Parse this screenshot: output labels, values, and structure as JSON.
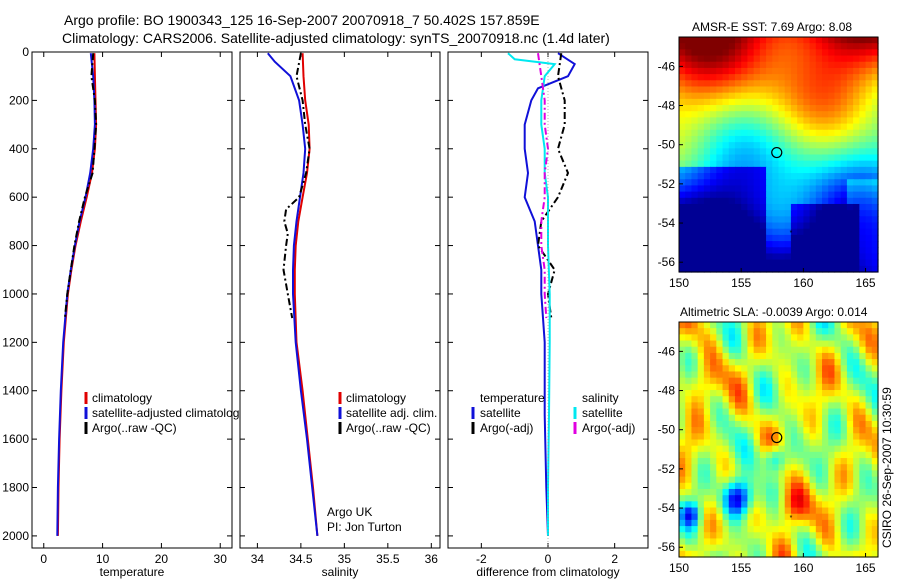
{
  "title_line1": "Argo profile: BO 1900343_125 16-Sep-2007 20070918_7 50.402S 157.859E",
  "title_line2": "Climatology: CARS2006. Satellite-adjusted climatology: synTS_20070918.nc (1.4d later)",
  "credit": "CSIRO 26-Sep-2007 10:30:59",
  "colors": {
    "climatology": "#e00000",
    "satellite": "#1010d8",
    "argo": "#000000",
    "satellite_diff": "#00e8f0",
    "argo_adj": "#e000e0"
  },
  "chart_data": [
    {
      "id": "temperature",
      "type": "line",
      "xlabel": "temperature",
      "xlim": [
        -2,
        32
      ],
      "xticks": [
        "0",
        "10",
        "20",
        "30"
      ],
      "ylim": [
        0,
        2050
      ],
      "yticks": [
        "0",
        "200",
        "400",
        "600",
        "800",
        "1000",
        "1200",
        "1400",
        "1600",
        "1800",
        "2000"
      ],
      "legend": [
        "climatology",
        "satellite-adjusted climatology",
        "Argo(..raw -QC)"
      ],
      "series": [
        {
          "name": "climatology",
          "color": "#e00000",
          "depth": [
            5,
            100,
            200,
            300,
            400,
            500,
            600,
            700,
            800,
            900,
            1000,
            1200,
            1400,
            1600,
            1800,
            2000
          ],
          "values": [
            8.6,
            8.7,
            8.8,
            8.9,
            8.7,
            8.2,
            7.3,
            6.3,
            5.4,
            4.7,
            4.1,
            3.4,
            3.0,
            2.7,
            2.5,
            2.4
          ]
        },
        {
          "name": "satellite-adjusted climatology",
          "color": "#1010d8",
          "depth": [
            5,
            100,
            200,
            300,
            400,
            500,
            600,
            700,
            800,
            900,
            1000,
            1200,
            1400,
            1600,
            1800,
            2000
          ],
          "values": [
            8.0,
            8.4,
            8.6,
            8.7,
            8.4,
            7.9,
            7.1,
            6.1,
            5.3,
            4.6,
            4.0,
            3.3,
            2.9,
            2.6,
            2.4,
            2.3
          ]
        },
        {
          "name": "Argo(..raw -QC)",
          "color": "#000000",
          "dash": true,
          "depth": [
            5,
            100,
            200,
            300,
            400,
            500,
            600,
            700,
            800,
            900,
            1000,
            1100
          ],
          "values": [
            8.4,
            8.1,
            8.7,
            8.9,
            8.6,
            8.3,
            7.0,
            6.0,
            5.2,
            4.6,
            4.0,
            3.6
          ]
        }
      ]
    },
    {
      "id": "salinity",
      "type": "line",
      "xlabel": "salinity",
      "xlim": [
        33.8,
        36.1
      ],
      "xticks": [
        "34",
        "34.5",
        "35",
        "35.5",
        "36"
      ],
      "ylim": [
        0,
        2050
      ],
      "yticks": [],
      "legend": [
        "climatology",
        "satellite adj. clim.",
        "Argo(..raw -QC)"
      ],
      "annotations": [
        "Argo UK",
        "PI: Jon Turton"
      ],
      "series": [
        {
          "name": "climatology",
          "color": "#e00000",
          "depth": [
            5,
            100,
            200,
            300,
            400,
            500,
            600,
            700,
            800,
            900,
            1000,
            1200,
            1400,
            1600,
            1800,
            2000
          ],
          "values": [
            34.52,
            34.53,
            34.55,
            34.59,
            34.6,
            34.57,
            34.52,
            34.47,
            34.44,
            34.43,
            34.43,
            34.45,
            34.52,
            34.58,
            34.64,
            34.69
          ]
        },
        {
          "name": "satellite adj. clim.",
          "color": "#1010d8",
          "depth": [
            5,
            40,
            100,
            200,
            300,
            400,
            500,
            600,
            700,
            800,
            900,
            1000,
            1200,
            1400,
            1600,
            1800,
            2000
          ],
          "values": [
            34.12,
            34.2,
            34.38,
            34.48,
            34.52,
            34.55,
            34.53,
            34.49,
            34.45,
            34.42,
            34.41,
            34.41,
            34.44,
            34.5,
            34.57,
            34.63,
            34.69
          ]
        },
        {
          "name": "Argo(..raw -QC)",
          "color": "#000000",
          "dash": true,
          "depth": [
            5,
            100,
            200,
            300,
            400,
            500,
            600,
            650,
            700,
            750,
            800,
            900,
            1000,
            1100
          ],
          "values": [
            34.5,
            34.45,
            34.52,
            34.55,
            34.6,
            34.56,
            34.48,
            34.33,
            34.31,
            34.35,
            34.33,
            34.3,
            34.35,
            34.4
          ]
        }
      ]
    },
    {
      "id": "difference",
      "type": "line",
      "xlabel": "difference from climatology",
      "xlim": [
        -3,
        3
      ],
      "xticks": [
        "-2",
        "0",
        "2"
      ],
      "ylim": [
        0,
        2050
      ],
      "yticks": [],
      "legend": [
        {
          "heading": "temperature",
          "items": [
            "satellite",
            "Argo(-adj)"
          ]
        },
        {
          "heading": "salinity",
          "items": [
            "satellite",
            "Argo(-adj)"
          ]
        }
      ],
      "series": [
        {
          "name": "temperature satellite",
          "color": "#1010d8",
          "depth": [
            5,
            50,
            100,
            150,
            200,
            300,
            400,
            500,
            600,
            700,
            800,
            900,
            1000,
            1200,
            1500,
            1800,
            2000
          ],
          "values": [
            0.3,
            0.8,
            0.6,
            -0.3,
            -0.5,
            -0.7,
            -0.7,
            -0.6,
            -0.7,
            -0.4,
            -0.3,
            -0.2,
            -0.2,
            -0.1,
            -0.1,
            -0.05,
            0
          ]
        },
        {
          "name": "temperature Argo(-adj)",
          "color": "#000000",
          "dash": true,
          "depth": [
            5,
            100,
            200,
            300,
            400,
            500,
            600,
            700,
            800,
            900,
            1000,
            1100
          ],
          "values": [
            0.4,
            0.3,
            0.5,
            0.5,
            0.3,
            0.6,
            0.3,
            -0.2,
            -0.3,
            0.2,
            0.0,
            0.1
          ]
        },
        {
          "name": "salinity satellite",
          "color": "#00e8f0",
          "depth": [
            5,
            30,
            50,
            100,
            200,
            300,
            400,
            500,
            600,
            700,
            800,
            1000,
            1200,
            1500,
            1800,
            2000
          ],
          "values": [
            -1.2,
            -1.0,
            0.2,
            -0.1,
            -0.2,
            -0.2,
            -0.1,
            -0.1,
            0.0,
            0.0,
            0.0,
            0.05,
            0.05,
            0.03,
            0.0,
            0.0
          ]
        },
        {
          "name": "salinity Argo(-adj)",
          "color": "#e000e0",
          "dash": true,
          "depth": [
            5,
            100,
            200,
            300,
            400,
            500,
            600,
            700,
            800,
            900,
            1000,
            1100
          ],
          "values": [
            -0.3,
            -0.2,
            -0.1,
            -0.1,
            0.0,
            -0.1,
            -0.1,
            -0.2,
            -0.2,
            -0.1,
            -0.1,
            -0.05
          ]
        }
      ]
    },
    {
      "id": "sst_map",
      "type": "heatmap",
      "title": "AMSR-E SST: 7.69 Argo: 8.08",
      "xticks": [
        "150",
        "155",
        "160",
        "165"
      ],
      "yticks": [
        "-46",
        "-48",
        "-50",
        "-52",
        "-54",
        "-56"
      ],
      "xlim": [
        150,
        166
      ],
      "ylim": [
        -56.5,
        -44.5
      ],
      "marker": {
        "lon": 157.86,
        "lat": -50.4
      }
    },
    {
      "id": "sla_map",
      "type": "heatmap",
      "title": "Altimetric SLA: -0.0039 Argo: 0.014",
      "xticks": [
        "150",
        "155",
        "160",
        "165"
      ],
      "yticks": [
        "-46",
        "-48",
        "-50",
        "-52",
        "-54",
        "-56"
      ],
      "xlim": [
        150,
        166
      ],
      "ylim": [
        -56.5,
        -44.5
      ],
      "marker": {
        "lon": 157.86,
        "lat": -50.4
      }
    }
  ]
}
